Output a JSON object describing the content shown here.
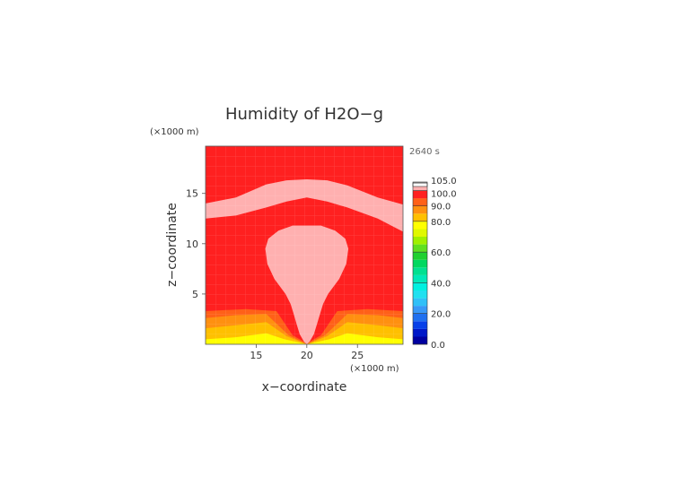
{
  "chart_data": {
    "type": "heatmap",
    "title": "Humidity of H2O−g",
    "xlabel": "x−coordinate",
    "ylabel": "z−coordinate",
    "x_unit": "(×1000 m)",
    "y_unit": "(×1000 m)",
    "time_label": "2640 s",
    "xlim": [
      10,
      29.5
    ],
    "ylim": [
      0,
      19.7
    ],
    "x_ticks": [
      15,
      20,
      25
    ],
    "y_ticks": [
      5,
      10,
      15
    ],
    "x_tick_labels": [
      "15",
      "20",
      "25"
    ],
    "y_tick_labels": [
      "5",
      "10",
      "15"
    ],
    "colorbar": {
      "min": 0,
      "max": 105,
      "step": 5,
      "tick_values": [
        0,
        20,
        40,
        60,
        80,
        90,
        100,
        105
      ],
      "tick_labels": [
        "0.0",
        "20.0",
        "40.0",
        "60.0",
        "80.0",
        "90.0",
        "100.0",
        "105.0"
      ],
      "levels": [
        {
          "from": 0,
          "to": 5,
          "color": "#0000a0"
        },
        {
          "from": 5,
          "to": 10,
          "color": "#0018c8"
        },
        {
          "from": 10,
          "to": 15,
          "color": "#0840e8"
        },
        {
          "from": 15,
          "to": 20,
          "color": "#2070f0"
        },
        {
          "from": 20,
          "to": 25,
          "color": "#3898f8"
        },
        {
          "from": 25,
          "to": 30,
          "color": "#30c0f8"
        },
        {
          "from": 30,
          "to": 35,
          "color": "#20e0f0"
        },
        {
          "from": 35,
          "to": 40,
          "color": "#00f0e0"
        },
        {
          "from": 40,
          "to": 45,
          "color": "#00e8b8"
        },
        {
          "from": 45,
          "to": 50,
          "color": "#00e090"
        },
        {
          "from": 50,
          "to": 55,
          "color": "#00d860"
        },
        {
          "from": 55,
          "to": 60,
          "color": "#20d030"
        },
        {
          "from": 60,
          "to": 65,
          "color": "#60e020"
        },
        {
          "from": 65,
          "to": 70,
          "color": "#a0f000"
        },
        {
          "from": 70,
          "to": 75,
          "color": "#e0f800"
        },
        {
          "from": 75,
          "to": 80,
          "color": "#ffff00"
        },
        {
          "from": 80,
          "to": 85,
          "color": "#ffc000"
        },
        {
          "from": 85,
          "to": 90,
          "color": "#ff9010"
        },
        {
          "from": 90,
          "to": 95,
          "color": "#ff6018"
        },
        {
          "from": 95,
          "to": 100,
          "color": "#ff2020"
        },
        {
          "from": 100,
          "to": 105,
          "color": "#ffb0b0"
        }
      ]
    },
    "regions": [
      {
        "description": "background",
        "value": 98
      },
      {
        "description": "upper cloud canopy",
        "value": 102,
        "z_top": [
          [
            10,
            14.0
          ],
          [
            13,
            14.6
          ],
          [
            16,
            15.9
          ],
          [
            18,
            16.3
          ],
          [
            20,
            16.4
          ],
          [
            22,
            16.3
          ],
          [
            24,
            15.8
          ],
          [
            27,
            14.6
          ],
          [
            29.5,
            13.9
          ]
        ],
        "z_bottom": [
          [
            10,
            12.5
          ],
          [
            13,
            12.8
          ],
          [
            16,
            13.6
          ],
          [
            18,
            14.2
          ],
          [
            20,
            14.6
          ],
          [
            22,
            14.2
          ],
          [
            24,
            13.6
          ],
          [
            27,
            12.5
          ],
          [
            29.5,
            11.2
          ]
        ]
      },
      {
        "description": "central updraft column",
        "value": 102,
        "center_x": 20,
        "half_width": [
          [
            0.3,
            0.3
          ],
          [
            1.0,
            0.7
          ],
          [
            2.0,
            1.0
          ],
          [
            3.0,
            1.3
          ],
          [
            4.0,
            1.6
          ],
          [
            5.0,
            2.1
          ],
          [
            6.5,
            3.2
          ],
          [
            8.0,
            3.9
          ],
          [
            9.5,
            4.1
          ],
          [
            10.5,
            3.8
          ],
          [
            11.3,
            2.8
          ],
          [
            11.8,
            1.4
          ]
        ]
      },
      {
        "description": "lower boundary layer bands",
        "value_levels": [
          95,
          90,
          85,
          80,
          75
        ]
      }
    ]
  }
}
